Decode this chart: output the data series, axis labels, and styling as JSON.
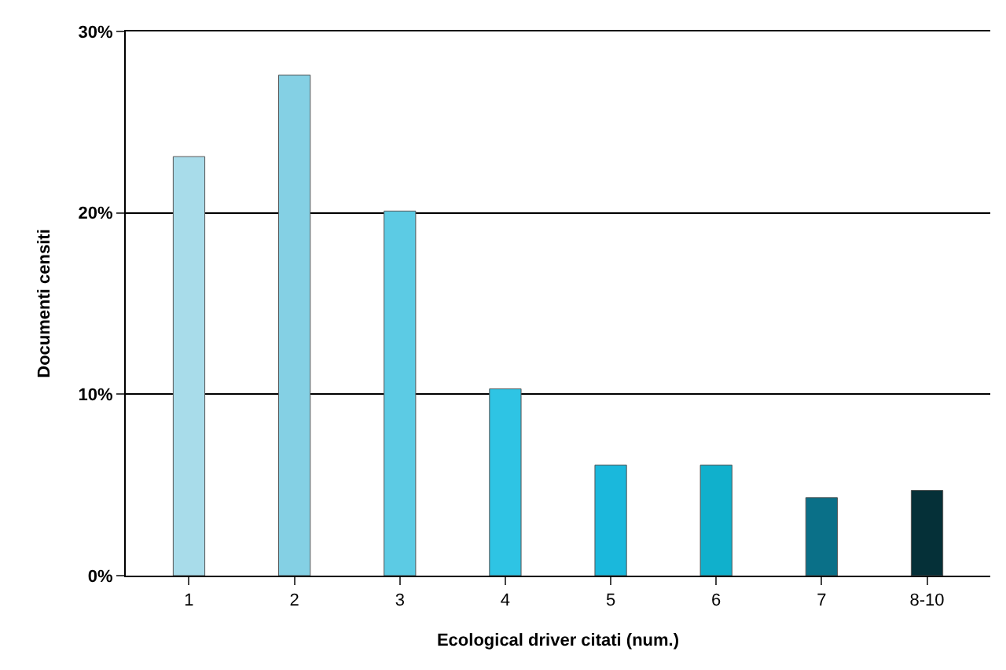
{
  "chart_data": {
    "type": "bar",
    "xlabel": "Ecological driver citati (num.)",
    "ylabel": "Documenti censiti",
    "categories": [
      "1",
      "2",
      "3",
      "4",
      "5",
      "6",
      "7",
      "8-10"
    ],
    "values": [
      23.1,
      27.6,
      20.1,
      10.3,
      6.1,
      6.1,
      4.3,
      4.7
    ],
    "colors": [
      "#a8dcea",
      "#84d0e4",
      "#5ccbe4",
      "#2ec4e4",
      "#1ab8dc",
      "#10b0cc",
      "#0a7088",
      "#053038"
    ],
    "ylim": [
      0,
      30
    ],
    "yticks": [
      {
        "value": 0,
        "label": "0%"
      },
      {
        "value": 10,
        "label": "10%"
      },
      {
        "value": 20,
        "label": "20%"
      },
      {
        "value": 30,
        "label": "30%"
      }
    ],
    "grid": "y"
  }
}
